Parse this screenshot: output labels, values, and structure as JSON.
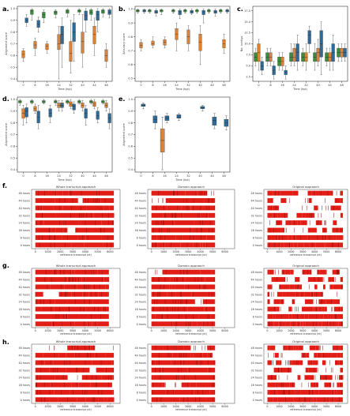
{
  "meta": {
    "colors": {
      "blue": "#2f6a96",
      "orange": "#d9833a",
      "green": "#3b8e3b",
      "red": "#e21d15",
      "dark": "#8b0f0f"
    }
  },
  "chart_data": {
    "boxplots": [
      {
        "letter": "a.",
        "type": "box",
        "ylabel": "Alignment score",
        "xlabel": "Time (hpi)",
        "categories": [
          "0",
          "8",
          "16",
          "24",
          "32",
          "40",
          "44",
          "48"
        ],
        "yticks": [
          "0.4",
          "0.5",
          "0.6",
          "0.7",
          "0.8",
          "0.9",
          "1.0"
        ],
        "ylim": [
          0.38,
          1.02
        ],
        "series": [
          {
            "color": "green",
            "values": [
              null,
              [
                0.9,
                0.95,
                0.98,
                0.99,
                1.0
              ],
              [
                0.88,
                0.92,
                0.95,
                0.97,
                0.99
              ],
              [
                0.92,
                0.95,
                0.97,
                0.98,
                0.99
              ],
              [
                0.93,
                0.96,
                0.98,
                0.99,
                1.0
              ],
              [
                0.95,
                0.97,
                0.98,
                0.99,
                1.0
              ],
              [
                0.9,
                0.95,
                0.97,
                0.99,
                1.0
              ],
              [
                0.93,
                0.96,
                0.98,
                0.99,
                1.0
              ]
            ]
          },
          {
            "color": "orange",
            "values": [
              [
                0.55,
                0.58,
                0.61,
                0.64,
                0.66
              ],
              [
                0.6,
                0.66,
                0.69,
                0.72,
                0.75
              ],
              [
                0.62,
                0.65,
                0.68,
                0.7,
                0.72
              ],
              [
                0.4,
                0.65,
                0.7,
                0.78,
                0.85
              ],
              [
                0.45,
                0.55,
                0.62,
                0.72,
                0.9
              ],
              [
                0.5,
                0.62,
                0.72,
                0.8,
                0.95
              ],
              [
                0.6,
                0.7,
                0.78,
                0.85,
                0.92
              ],
              [
                0.5,
                0.55,
                0.6,
                0.65,
                0.7
              ]
            ]
          },
          {
            "color": "blue",
            "values": [
              [
                0.85,
                0.88,
                0.9,
                0.92,
                0.95
              ],
              [
                0.8,
                0.84,
                0.87,
                0.9,
                0.93
              ],
              null,
              [
                0.5,
                0.7,
                0.78,
                0.85,
                0.92
              ],
              [
                0.55,
                0.72,
                0.8,
                0.88,
                0.95
              ],
              [
                0.8,
                0.9,
                0.94,
                0.98,
                1.0
              ],
              [
                0.8,
                0.9,
                0.95,
                0.98,
                1.0
              ],
              [
                0.92,
                0.95,
                0.97,
                0.99,
                1.0
              ]
            ]
          }
        ]
      },
      {
        "letter": "b.",
        "type": "box",
        "ylabel": "Accuracy score",
        "xlabel": "Time (hpi)",
        "categories": [
          "0",
          "8",
          "16",
          "24",
          "32",
          "40",
          "44",
          "48"
        ],
        "yticks": [
          "0.5",
          "0.6",
          "0.7",
          "0.8",
          "0.9",
          "1.0"
        ],
        "ylim": [
          0.48,
          1.02
        ],
        "series": [
          {
            "color": "green",
            "values": [
              [
                0.97,
                0.98,
                0.99,
                0.995,
                1.0
              ],
              [
                0.97,
                0.98,
                0.99,
                0.995,
                1.0
              ],
              [
                0.96,
                0.98,
                0.99,
                0.995,
                1.0
              ],
              [
                0.97,
                0.98,
                0.99,
                0.995,
                1.0
              ],
              [
                0.97,
                0.98,
                0.99,
                0.995,
                1.0
              ],
              [
                0.97,
                0.98,
                0.99,
                0.995,
                1.0
              ],
              [
                0.97,
                0.98,
                0.99,
                0.995,
                1.0
              ],
              [
                0.97,
                0.98,
                0.99,
                0.995,
                1.0
              ]
            ]
          },
          {
            "color": "orange",
            "values": [
              [
                0.7,
                0.72,
                0.74,
                0.76,
                0.78
              ],
              [
                0.72,
                0.74,
                0.75,
                0.77,
                0.8
              ],
              [
                0.72,
                0.74,
                0.76,
                0.78,
                0.8
              ],
              [
                0.7,
                0.78,
                0.82,
                0.86,
                0.9
              ],
              [
                0.7,
                0.75,
                0.8,
                0.85,
                0.88
              ],
              [
                0.6,
                0.7,
                0.76,
                0.82,
                0.88
              ],
              null,
              [
                0.68,
                0.72,
                0.75,
                0.78,
                0.82
              ]
            ]
          },
          {
            "color": "blue",
            "values": [
              [
                0.97,
                0.98,
                0.99,
                0.995,
                1.0
              ],
              [
                0.95,
                0.97,
                0.98,
                0.99,
                1.0
              ],
              null,
              [
                0.93,
                0.96,
                0.98,
                0.99,
                1.0
              ],
              [
                0.96,
                0.97,
                0.985,
                0.99,
                1.0
              ],
              [
                0.9,
                0.96,
                0.98,
                0.99,
                1.0
              ],
              [
                0.95,
                0.97,
                0.98,
                0.99,
                1.0
              ],
              [
                0.97,
                0.98,
                0.99,
                0.995,
                1.0
              ]
            ]
          }
        ]
      },
      {
        "letter": "c.",
        "type": "box",
        "ylabel": "No. contigs",
        "xlabel": "Time (hpi)",
        "categories": [
          "0",
          "8",
          "16",
          "24",
          "32",
          "40",
          "44",
          "48"
        ],
        "yticks": [
          "2.5",
          "5.0",
          "7.5",
          "10.0",
          "12.5",
          "15.0",
          "17.5"
        ],
        "ylim": [
          1.5,
          18.5
        ],
        "series": [
          {
            "color": "green",
            "values": [
              [
                5,
                6,
                7,
                8,
                9
              ],
              [
                5,
                6,
                7,
                8,
                9
              ],
              [
                4,
                5,
                6,
                7,
                8
              ],
              [
                5,
                6,
                7,
                8,
                10
              ],
              [
                5,
                6,
                7,
                8,
                9
              ],
              [
                4,
                6,
                7,
                8,
                10
              ],
              [
                5,
                6,
                7,
                8,
                9
              ],
              [
                6,
                7,
                8,
                9,
                10
              ]
            ]
          },
          {
            "color": "orange",
            "values": [
              [
                4,
                6,
                8,
                10,
                11
              ],
              [
                5,
                6,
                7,
                8,
                9
              ],
              [
                4,
                5,
                6,
                7,
                8
              ],
              [
                5,
                6,
                7,
                9,
                10
              ],
              [
                4,
                6,
                7,
                8,
                10
              ],
              [
                5,
                6,
                8,
                9,
                11
              ],
              [
                4,
                6,
                7,
                8,
                9
              ],
              [
                6,
                7,
                8,
                9,
                10
              ]
            ]
          },
          {
            "color": "blue",
            "values": [
              [
                3,
                4,
                5,
                6,
                7
              ],
              [
                2,
                3,
                4,
                5,
                6
              ],
              [
                2,
                3,
                3.5,
                4,
                5
              ],
              [
                4,
                6,
                8,
                10,
                12
              ],
              [
                8,
                10,
                12,
                13,
                14
              ],
              [
                3,
                7,
                10,
                13,
                15
              ],
              [
                4,
                6,
                8,
                10,
                12
              ],
              [
                6,
                7,
                8,
                9,
                10
              ]
            ]
          }
        ]
      },
      {
        "letter": "d.",
        "type": "box",
        "ylabel": "Alignment score",
        "xlabel": "Time (hpi)",
        "categories": [
          "0",
          "8",
          "16",
          "24",
          "32",
          "40",
          "44",
          "48"
        ],
        "yticks": [
          "0.4",
          "0.5",
          "0.6",
          "0.7",
          "0.8",
          "0.9",
          "1.0"
        ],
        "ylim": [
          0.38,
          1.02
        ],
        "series": [
          {
            "color": "green",
            "values": [
              [
                0.95,
                0.97,
                0.98,
                0.99,
                1.0
              ],
              [
                0.96,
                0.97,
                0.98,
                0.99,
                1.0
              ],
              [
                0.96,
                0.97,
                0.98,
                0.99,
                1.0
              ],
              [
                0.95,
                0.97,
                0.98,
                0.99,
                1.0
              ],
              [
                0.96,
                0.97,
                0.98,
                0.99,
                1.0
              ],
              [
                0.96,
                0.97,
                0.98,
                0.99,
                1.0
              ],
              [
                0.96,
                0.97,
                0.98,
                0.99,
                1.0
              ],
              [
                0.96,
                0.97,
                0.98,
                0.99,
                1.0
              ]
            ]
          },
          {
            "color": "orange",
            "values": [
              [
                0.78,
                0.84,
                0.88,
                0.92,
                0.95
              ],
              [
                0.88,
                0.9,
                0.92,
                0.94,
                0.96
              ],
              null,
              [
                0.9,
                0.93,
                0.95,
                0.97,
                0.99
              ],
              [
                0.92,
                0.94,
                0.96,
                0.98,
                1.0
              ],
              [
                0.9,
                0.93,
                0.95,
                0.97,
                0.99
              ],
              [
                0.92,
                0.94,
                0.96,
                0.98,
                1.0
              ],
              [
                0.9,
                0.93,
                0.95,
                0.97,
                0.99
              ]
            ]
          },
          {
            "color": "blue",
            "values": [
              [
                0.8,
                0.85,
                0.9,
                0.93,
                0.96
              ],
              [
                0.75,
                0.8,
                0.85,
                0.9,
                0.95
              ],
              [
                0.8,
                0.85,
                0.88,
                0.92,
                0.95
              ],
              [
                0.9,
                0.93,
                0.95,
                0.97,
                0.99
              ],
              [
                0.88,
                0.91,
                0.94,
                0.96,
                0.98
              ],
              [
                0.78,
                0.84,
                0.88,
                0.92,
                0.95
              ],
              [
                0.8,
                0.83,
                0.86,
                0.9,
                0.93
              ],
              [
                0.75,
                0.8,
                0.84,
                0.88,
                0.92
              ]
            ]
          }
        ]
      },
      {
        "letter": "e.",
        "type": "box",
        "ylabel": "Alignment score",
        "xlabel": "Time (hpi)",
        "categories": [
          "0",
          "8",
          "16",
          "24",
          "32",
          "40",
          "44",
          "48"
        ],
        "yticks": [
          "0.4",
          "0.5",
          "0.6",
          "0.7",
          "0.8",
          "0.9",
          "1.0"
        ],
        "ylim": [
          0.38,
          1.02
        ],
        "series": [
          {
            "color": "orange",
            "values": [
              null,
              null,
              [
                0.4,
                0.55,
                0.65,
                0.75,
                0.85
              ],
              null,
              null,
              null,
              null,
              null
            ]
          },
          {
            "color": "blue",
            "values": [
              [
                0.92,
                0.94,
                0.95,
                0.96,
                0.97
              ],
              [
                0.75,
                0.8,
                0.83,
                0.86,
                0.9
              ],
              [
                0.8,
                0.82,
                0.84,
                0.86,
                0.88
              ],
              [
                0.82,
                0.84,
                0.85,
                0.87,
                0.88
              ],
              null,
              [
                0.9,
                0.92,
                0.93,
                0.94,
                0.95
              ],
              [
                0.75,
                0.78,
                0.82,
                0.85,
                0.88
              ],
              [
                0.74,
                0.77,
                0.8,
                0.83,
                0.86
              ]
            ]
          }
        ]
      }
    ],
    "coverage": {
      "type": "heatmap",
      "rows": [
        "48 hours",
        "44 hours",
        "40 hours",
        "32 hours",
        "24 hours",
        "16 hours",
        "8 hours",
        "0 hours"
      ],
      "xlabel": "reference transcript (nt)",
      "xticks": [
        0,
        1000,
        2000,
        3000,
        4000,
        5000,
        6000
      ],
      "xlim": [
        -300,
        6800
      ],
      "column_titles": [
        "Whole transcript approach",
        "Domain approach",
        "Original approach"
      ],
      "row_letters": [
        "f.",
        "g.",
        "h."
      ],
      "panels": [
        {
          "seed": 11,
          "gap": 0.08,
          "last": 6300
        },
        {
          "seed": 23,
          "gap": 0.05,
          "last": 5200
        },
        {
          "seed": 37,
          "gap": 0.32,
          "last": 6400
        },
        {
          "seed": 41,
          "gap": 0.06,
          "last": 5900
        },
        {
          "seed": 53,
          "gap": 0.05,
          "last": 5200
        },
        {
          "seed": 67,
          "gap": 0.3,
          "last": 6400
        },
        {
          "seed": 71,
          "gap": 0.06,
          "last": 6300
        },
        {
          "seed": 83,
          "gap": 0.06,
          "last": 5200
        },
        {
          "seed": 97,
          "gap": 0.3,
          "last": 6400
        }
      ]
    }
  }
}
